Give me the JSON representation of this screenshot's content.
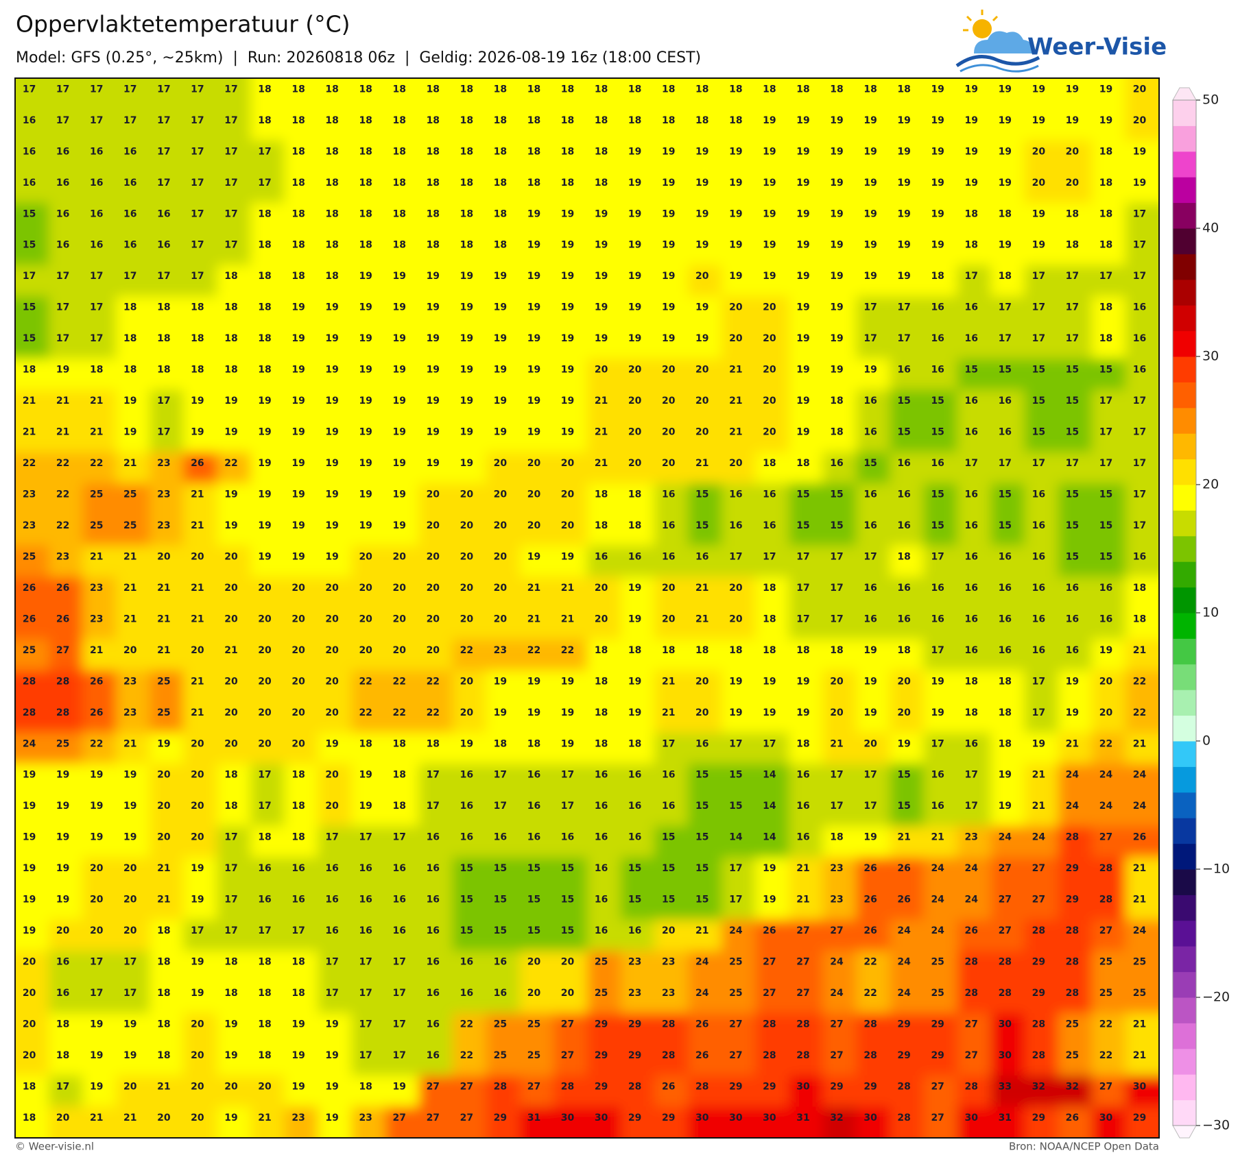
{
  "chart_data": {
    "type": "heatmap",
    "title": "Oppervlaktetemperatuur (°C)",
    "subtitle": "Model: GFS (0.25°, ~25km)  |  Run: 20260818 06z  |  Geldig: 2026-08-19 16z (18:00 CEST)",
    "logo": "Weer-Visie",
    "footer_left": "© Weer-visie.nl",
    "footer_right": "Bron: NOAA/NCEP Open Data",
    "values": [
      [
        17,
        17,
        17,
        17,
        17,
        17,
        17,
        18,
        18,
        18,
        18,
        18,
        18,
        18,
        18,
        18,
        18,
        18,
        18,
        18,
        18,
        18,
        18,
        18,
        18,
        18,
        18,
        19,
        19,
        19,
        19,
        19,
        19,
        20
      ],
      [
        16,
        17,
        17,
        17,
        17,
        17,
        17,
        18,
        18,
        18,
        18,
        18,
        18,
        18,
        18,
        18,
        18,
        18,
        18,
        18,
        18,
        18,
        19,
        19,
        19,
        19,
        19,
        19,
        19,
        19,
        19,
        19,
        19,
        20
      ],
      [
        16,
        16,
        16,
        16,
        17,
        17,
        17,
        17,
        18,
        18,
        18,
        18,
        18,
        18,
        18,
        18,
        18,
        18,
        19,
        19,
        19,
        19,
        19,
        19,
        19,
        19,
        19,
        19,
        19,
        19,
        20,
        20,
        18,
        19
      ],
      [
        16,
        16,
        16,
        16,
        17,
        17,
        17,
        17,
        18,
        18,
        18,
        18,
        18,
        18,
        18,
        18,
        18,
        18,
        19,
        19,
        19,
        19,
        19,
        19,
        19,
        19,
        19,
        19,
        19,
        19,
        20,
        20,
        18,
        19
      ],
      [
        15,
        16,
        16,
        16,
        16,
        17,
        17,
        18,
        18,
        18,
        18,
        18,
        18,
        18,
        18,
        19,
        19,
        19,
        19,
        19,
        19,
        19,
        19,
        19,
        19,
        19,
        19,
        19,
        18,
        18,
        19,
        18,
        18,
        17
      ],
      [
        15,
        16,
        16,
        16,
        16,
        17,
        17,
        18,
        18,
        18,
        18,
        18,
        18,
        18,
        18,
        19,
        19,
        19,
        19,
        19,
        19,
        19,
        19,
        19,
        19,
        19,
        19,
        19,
        18,
        19,
        19,
        18,
        18,
        17
      ],
      [
        17,
        17,
        17,
        17,
        17,
        17,
        18,
        18,
        18,
        18,
        19,
        19,
        19,
        19,
        19,
        19,
        19,
        19,
        19,
        19,
        20,
        19,
        19,
        19,
        19,
        19,
        19,
        18,
        17,
        18,
        17,
        17,
        17,
        17
      ],
      [
        15,
        17,
        17,
        18,
        18,
        18,
        18,
        18,
        19,
        19,
        19,
        19,
        19,
        19,
        19,
        19,
        19,
        19,
        19,
        19,
        19,
        20,
        20,
        19,
        19,
        17,
        17,
        16,
        16,
        17,
        17,
        17,
        18,
        16
      ],
      [
        15,
        17,
        17,
        18,
        18,
        18,
        18,
        18,
        19,
        19,
        19,
        19,
        19,
        19,
        19,
        19,
        19,
        19,
        19,
        19,
        19,
        20,
        20,
        19,
        19,
        17,
        17,
        16,
        16,
        17,
        17,
        17,
        18,
        16
      ],
      [
        18,
        19,
        18,
        18,
        18,
        18,
        18,
        18,
        19,
        19,
        19,
        19,
        19,
        19,
        19,
        19,
        19,
        20,
        20,
        20,
        20,
        21,
        20,
        19,
        19,
        19,
        16,
        16,
        15,
        15,
        15,
        15,
        15,
        16
      ],
      [
        21,
        21,
        21,
        19,
        17,
        19,
        19,
        19,
        19,
        19,
        19,
        19,
        19,
        19,
        19,
        19,
        19,
        21,
        20,
        20,
        20,
        21,
        20,
        19,
        18,
        16,
        15,
        15,
        16,
        16,
        15,
        15,
        17,
        17
      ],
      [
        21,
        21,
        21,
        19,
        17,
        19,
        19,
        19,
        19,
        19,
        19,
        19,
        19,
        19,
        19,
        19,
        19,
        21,
        20,
        20,
        20,
        21,
        20,
        19,
        18,
        16,
        15,
        15,
        16,
        16,
        15,
        15,
        17,
        17
      ],
      [
        22,
        22,
        22,
        21,
        23,
        26,
        22,
        19,
        19,
        19,
        19,
        19,
        19,
        19,
        20,
        20,
        20,
        21,
        20,
        20,
        21,
        20,
        18,
        18,
        16,
        15,
        16,
        16,
        17,
        17,
        17,
        17,
        17,
        17
      ],
      [
        23,
        22,
        25,
        25,
        23,
        21,
        19,
        19,
        19,
        19,
        19,
        19,
        20,
        20,
        20,
        20,
        20,
        18,
        18,
        16,
        15,
        16,
        16,
        15,
        15,
        16,
        16,
        15,
        16,
        15,
        16,
        15,
        15,
        17
      ],
      [
        23,
        22,
        25,
        25,
        23,
        21,
        19,
        19,
        19,
        19,
        19,
        19,
        20,
        20,
        20,
        20,
        20,
        18,
        18,
        16,
        15,
        16,
        16,
        15,
        15,
        16,
        16,
        15,
        16,
        15,
        16,
        15,
        15,
        17
      ],
      [
        25,
        23,
        21,
        21,
        20,
        20,
        20,
        19,
        19,
        19,
        20,
        20,
        20,
        20,
        20,
        19,
        19,
        16,
        16,
        16,
        16,
        17,
        17,
        17,
        17,
        17,
        18,
        17,
        16,
        16,
        16,
        15,
        15,
        16
      ],
      [
        26,
        26,
        23,
        21,
        21,
        21,
        20,
        20,
        20,
        20,
        20,
        20,
        20,
        20,
        20,
        21,
        21,
        20,
        19,
        20,
        21,
        20,
        18,
        17,
        17,
        16,
        16,
        16,
        16,
        16,
        16,
        16,
        16,
        18
      ],
      [
        26,
        26,
        23,
        21,
        21,
        21,
        20,
        20,
        20,
        20,
        20,
        20,
        20,
        20,
        20,
        21,
        21,
        20,
        19,
        20,
        21,
        20,
        18,
        17,
        17,
        16,
        16,
        16,
        16,
        16,
        16,
        16,
        16,
        18
      ],
      [
        25,
        27,
        21,
        20,
        21,
        20,
        21,
        20,
        20,
        20,
        20,
        20,
        20,
        22,
        23,
        22,
        22,
        18,
        18,
        18,
        18,
        18,
        18,
        18,
        18,
        19,
        18,
        17,
        16,
        16,
        16,
        16,
        19,
        21
      ],
      [
        28,
        28,
        26,
        23,
        25,
        21,
        20,
        20,
        20,
        20,
        22,
        22,
        22,
        20,
        19,
        19,
        19,
        18,
        19,
        21,
        20,
        19,
        19,
        19,
        20,
        19,
        20,
        19,
        18,
        18,
        17,
        19,
        20,
        22
      ],
      [
        28,
        28,
        26,
        23,
        25,
        21,
        20,
        20,
        20,
        20,
        22,
        22,
        22,
        20,
        19,
        19,
        19,
        18,
        19,
        21,
        20,
        19,
        19,
        19,
        20,
        19,
        20,
        19,
        18,
        18,
        17,
        19,
        20,
        22
      ],
      [
        24,
        25,
        22,
        21,
        19,
        20,
        20,
        20,
        20,
        19,
        18,
        18,
        18,
        19,
        18,
        18,
        19,
        18,
        18,
        17,
        16,
        17,
        17,
        18,
        21,
        20,
        19,
        17,
        16,
        18,
        19,
        21,
        22,
        21
      ],
      [
        19,
        19,
        19,
        19,
        20,
        20,
        18,
        17,
        18,
        20,
        19,
        18,
        17,
        16,
        17,
        16,
        17,
        16,
        16,
        16,
        15,
        15,
        14,
        16,
        17,
        17,
        15,
        16,
        17,
        19,
        21,
        24,
        24,
        24
      ],
      [
        19,
        19,
        19,
        19,
        20,
        20,
        18,
        17,
        18,
        20,
        19,
        18,
        17,
        16,
        17,
        16,
        17,
        16,
        16,
        16,
        15,
        15,
        14,
        16,
        17,
        17,
        15,
        16,
        17,
        19,
        21,
        24,
        24,
        24
      ],
      [
        19,
        19,
        19,
        19,
        20,
        20,
        17,
        18,
        18,
        17,
        17,
        17,
        16,
        16,
        16,
        16,
        16,
        16,
        16,
        15,
        15,
        14,
        14,
        16,
        18,
        19,
        21,
        21,
        23,
        24,
        24,
        28,
        27,
        26
      ],
      [
        19,
        19,
        20,
        20,
        21,
        19,
        17,
        16,
        16,
        16,
        16,
        16,
        16,
        15,
        15,
        15,
        15,
        16,
        15,
        15,
        15,
        17,
        19,
        21,
        23,
        26,
        26,
        24,
        24,
        27,
        27,
        29,
        28,
        21
      ],
      [
        19,
        19,
        20,
        20,
        21,
        19,
        17,
        16,
        16,
        16,
        16,
        16,
        16,
        15,
        15,
        15,
        15,
        16,
        15,
        15,
        15,
        17,
        19,
        21,
        23,
        26,
        26,
        24,
        24,
        27,
        27,
        29,
        28,
        21
      ],
      [
        19,
        20,
        20,
        20,
        18,
        17,
        17,
        17,
        17,
        16,
        16,
        16,
        16,
        15,
        15,
        15,
        15,
        16,
        16,
        20,
        21,
        24,
        26,
        27,
        27,
        26,
        24,
        24,
        26,
        27,
        28,
        28,
        27,
        24
      ],
      [
        20,
        16,
        17,
        17,
        18,
        19,
        18,
        18,
        18,
        17,
        17,
        17,
        16,
        16,
        16,
        20,
        20,
        25,
        23,
        23,
        24,
        25,
        27,
        27,
        24,
        22,
        24,
        25,
        28,
        28,
        29,
        28,
        25,
        25
      ],
      [
        20,
        16,
        17,
        17,
        18,
        19,
        18,
        18,
        18,
        17,
        17,
        17,
        16,
        16,
        16,
        20,
        20,
        25,
        23,
        23,
        24,
        25,
        27,
        27,
        24,
        22,
        24,
        25,
        28,
        28,
        29,
        28,
        25,
        25
      ],
      [
        20,
        18,
        19,
        19,
        18,
        20,
        19,
        18,
        19,
        19,
        17,
        17,
        16,
        22,
        25,
        25,
        27,
        29,
        29,
        28,
        26,
        27,
        28,
        28,
        27,
        28,
        29,
        29,
        27,
        30,
        28,
        25,
        22,
        21
      ],
      [
        20,
        18,
        19,
        19,
        18,
        20,
        19,
        18,
        19,
        19,
        17,
        17,
        16,
        22,
        25,
        25,
        27,
        29,
        29,
        28,
        26,
        27,
        28,
        28,
        27,
        28,
        29,
        29,
        27,
        30,
        28,
        25,
        22,
        21
      ],
      [
        18,
        17,
        19,
        20,
        21,
        20,
        20,
        20,
        19,
        19,
        18,
        19,
        27,
        27,
        28,
        27,
        28,
        29,
        28,
        26,
        28,
        29,
        29,
        30,
        29,
        29,
        28,
        27,
        28,
        33,
        32,
        32,
        27,
        30
      ],
      [
        18,
        20,
        21,
        21,
        20,
        20,
        19,
        21,
        23,
        19,
        23,
        27,
        27,
        27,
        29,
        31,
        30,
        30,
        29,
        29,
        30,
        30,
        30,
        31,
        32,
        30,
        28,
        27,
        30,
        31,
        29,
        26,
        30,
        29
      ]
    ],
    "colorbar": {
      "lim": [
        -30,
        50
      ],
      "ticks": [
        {
          "value": -30,
          "label": "−30"
        },
        {
          "value": -20,
          "label": "−20"
        },
        {
          "value": -10,
          "label": "−10"
        },
        0,
        10,
        20,
        30,
        40,
        50
      ],
      "colors": [
        "#ffd9f7",
        "#ffb8f0",
        "#ee90e6",
        "#dd70d8",
        "#bb55c4",
        "#9a3db5",
        "#7a25a5",
        "#5a1095",
        "#3a0a70",
        "#1a0a48",
        "#00187a",
        "#0838a0",
        "#0a62c0",
        "#069ade",
        "#33c8f8",
        "#d4ffe0",
        "#a8f0b0",
        "#78dd78",
        "#44c844",
        "#00b400",
        "#009600",
        "#33aa00",
        "#7cc400",
        "#c8dc00",
        "#ffff00",
        "#ffe000",
        "#ffb800",
        "#ff8c00",
        "#ff6000",
        "#ff3c00",
        "#f00000",
        "#d00000",
        "#aa0000",
        "#800000",
        "#500030",
        "#880060",
        "#bb00a0",
        "#ee44cc",
        "#f9a0dd",
        "#fdd0ec"
      ]
    }
  }
}
